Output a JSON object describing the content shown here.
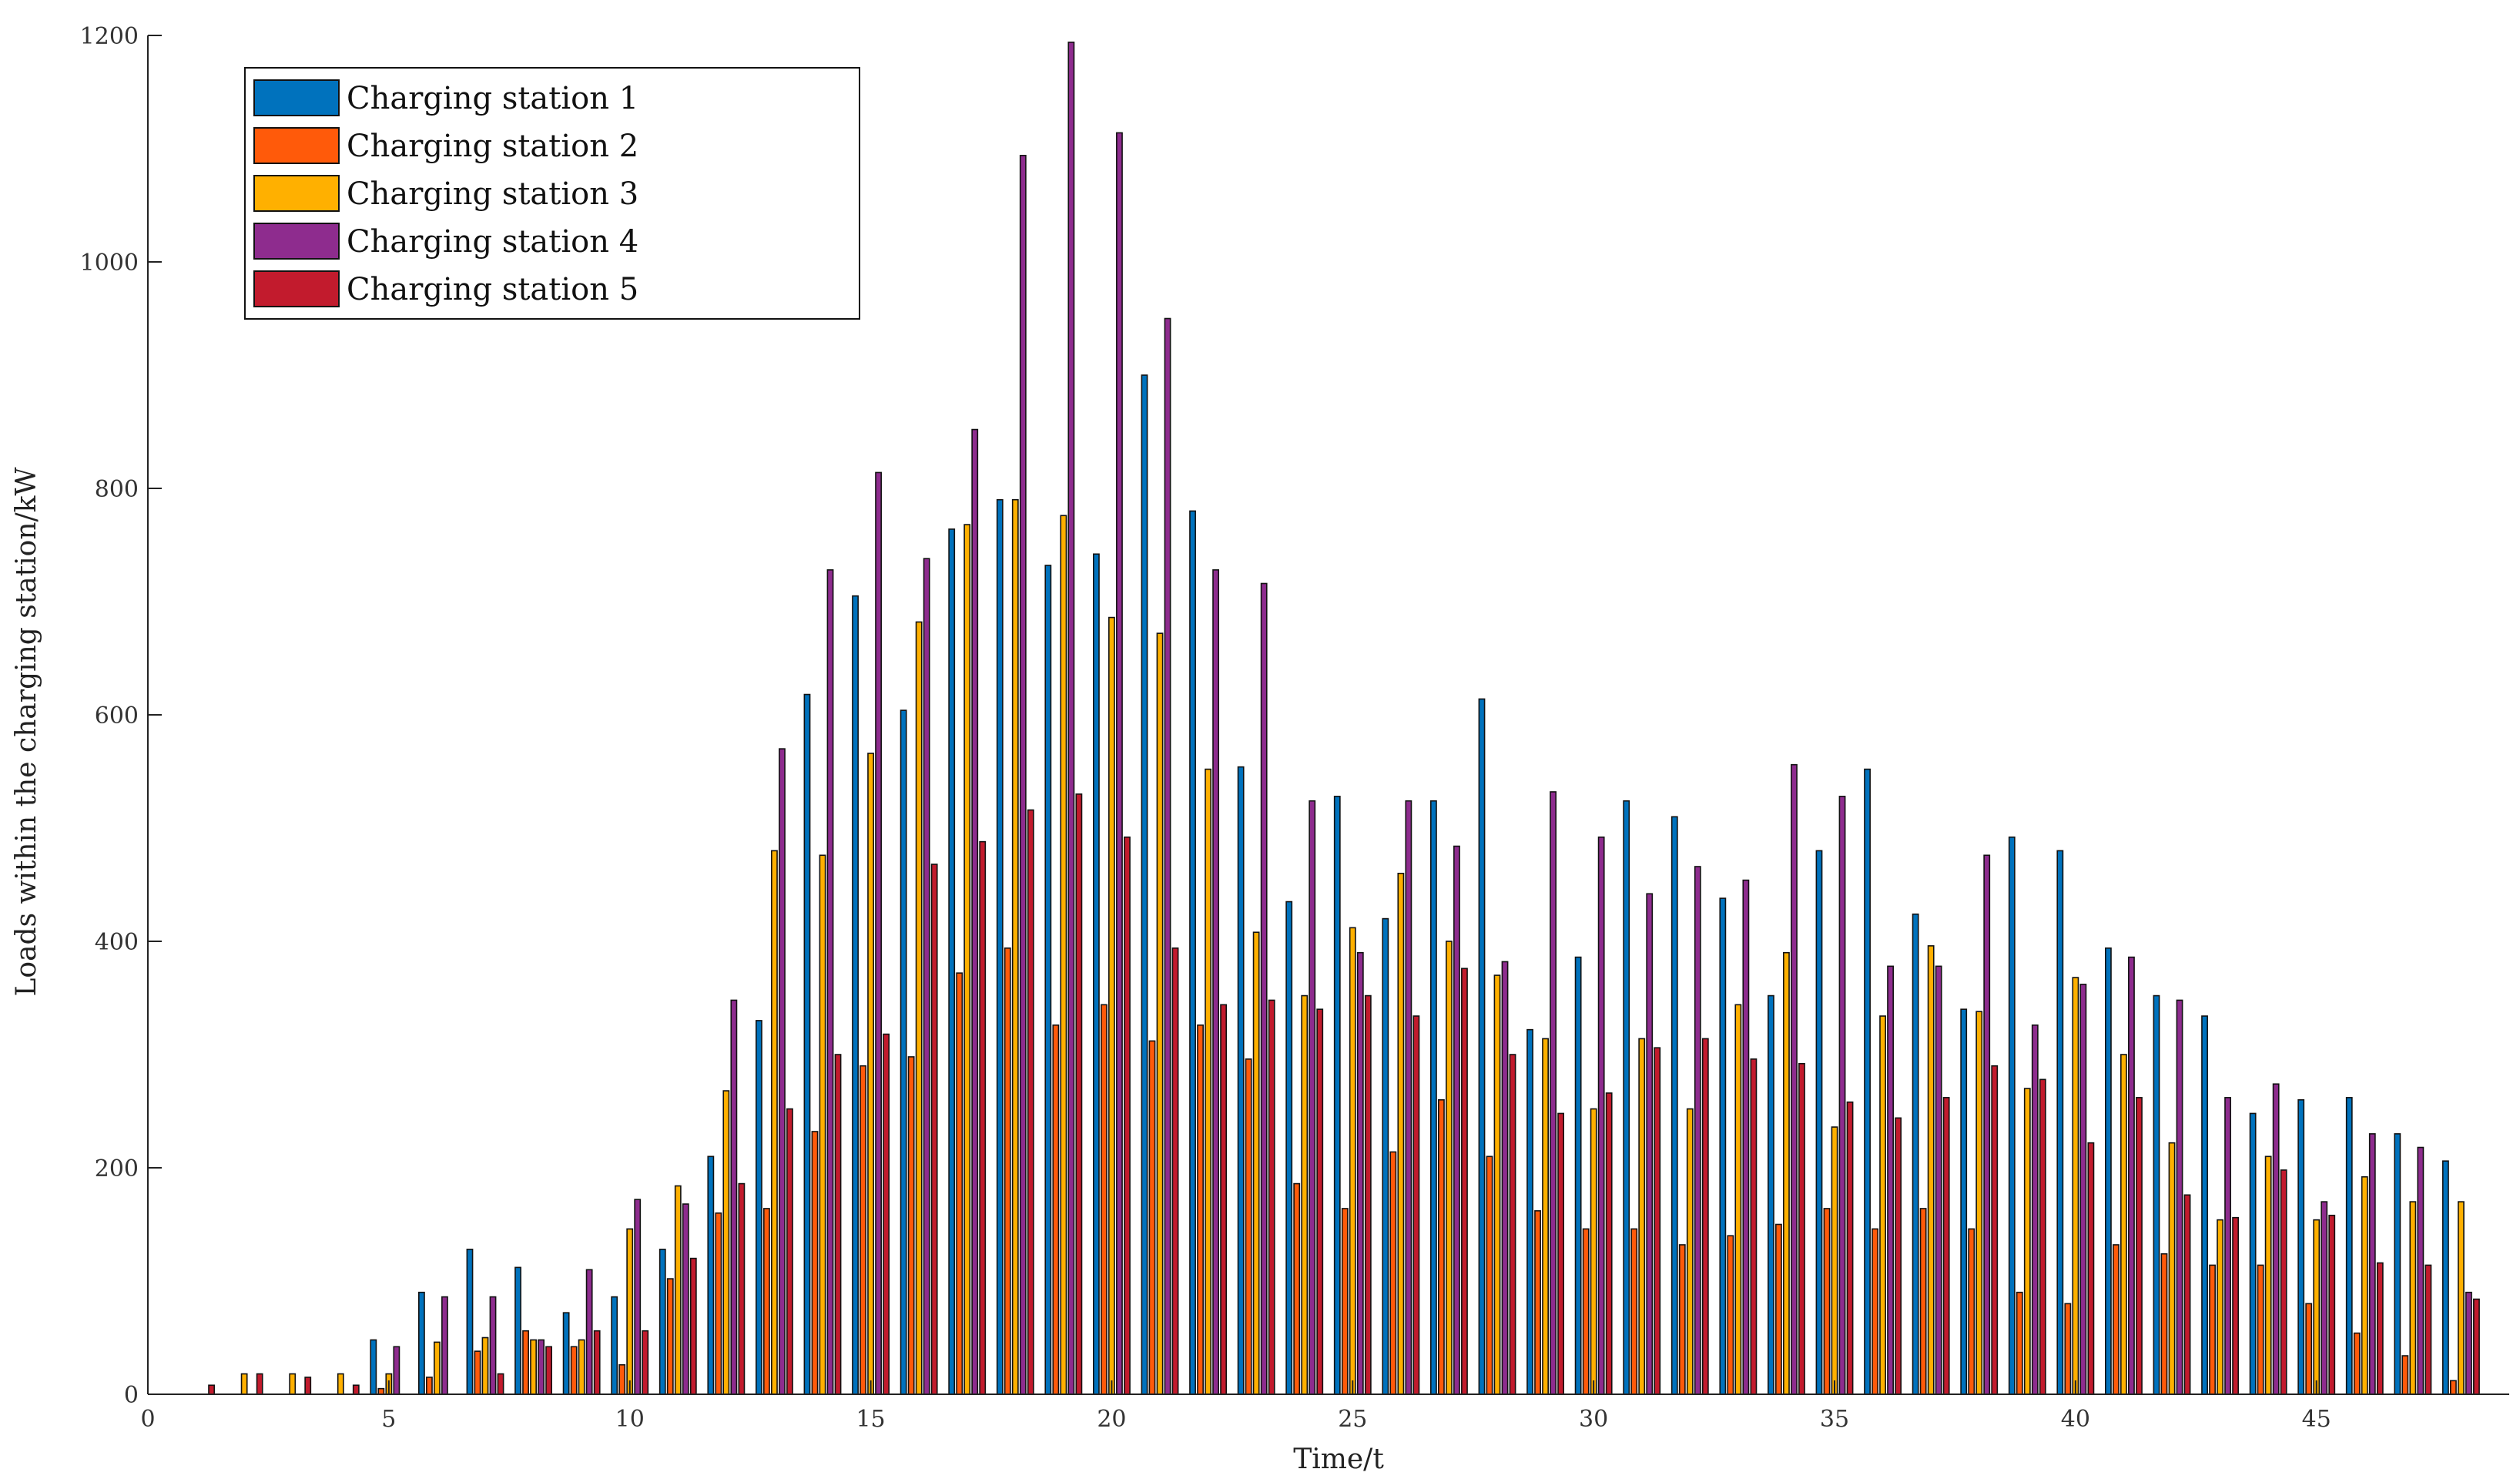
{
  "chart_data": {
    "type": "bar",
    "xlabel": "Time/t",
    "ylabel": "Loads within the charging station/kW",
    "xlim": [
      0,
      49
    ],
    "ylim": [
      0,
      1200
    ],
    "xticks": [
      0,
      5,
      10,
      15,
      20,
      25,
      30,
      35,
      40,
      45
    ],
    "yticks": [
      0,
      200,
      400,
      600,
      800,
      1000,
      1200
    ],
    "grid": false,
    "legend_position": "top-left",
    "categories": [
      1,
      2,
      3,
      4,
      5,
      6,
      7,
      8,
      9,
      10,
      11,
      12,
      13,
      14,
      15,
      16,
      17,
      18,
      19,
      20,
      21,
      22,
      23,
      24,
      25,
      26,
      27,
      28,
      29,
      30,
      31,
      32,
      33,
      34,
      35,
      36,
      37,
      38,
      39,
      40,
      41,
      42,
      43,
      44,
      45,
      46,
      47,
      48
    ],
    "series": [
      {
        "name": "Charging station 1",
        "color": "#0072BD",
        "values": [
          0,
          0,
          0,
          0,
          48,
          90,
          128,
          112,
          72,
          86,
          128,
          210,
          330,
          618,
          705,
          604,
          764,
          790,
          732,
          742,
          900,
          780,
          554,
          435,
          528,
          420,
          524,
          614,
          322,
          386,
          524,
          510,
          438,
          352,
          480,
          552,
          424,
          340,
          492,
          480,
          394,
          352,
          334,
          248,
          260,
          262,
          230,
          206
        ]
      },
      {
        "name": "Charging station 2",
        "color": "#FF5A0A",
        "values": [
          0,
          0,
          0,
          0,
          5,
          15,
          38,
          56,
          42,
          26,
          102,
          160,
          164,
          232,
          290,
          298,
          372,
          394,
          326,
          344,
          312,
          326,
          296,
          186,
          164,
          214,
          260,
          210,
          162,
          146,
          146,
          132,
          140,
          150,
          164,
          146,
          164,
          146,
          90,
          80,
          132,
          124,
          114,
          114,
          80,
          54,
          34,
          12
        ]
      },
      {
        "name": "Charging station 3",
        "color": "#FFB000",
        "values": [
          0,
          18,
          18,
          18,
          18,
          46,
          50,
          48,
          48,
          146,
          184,
          268,
          480,
          476,
          566,
          682,
          768,
          790,
          776,
          686,
          672,
          552,
          408,
          352,
          412,
          460,
          400,
          370,
          314,
          252,
          314,
          252,
          344,
          390,
          236,
          334,
          396,
          338,
          270,
          368,
          300,
          222,
          154,
          210,
          154,
          192,
          170,
          170
        ]
      },
      {
        "name": "Charging station 4",
        "color": "#8E2C8E",
        "values": [
          0,
          0,
          0,
          0,
          42,
          86,
          86,
          48,
          110,
          172,
          168,
          348,
          570,
          728,
          814,
          738,
          852,
          1094,
          1194,
          1114,
          950,
          728,
          716,
          524,
          390,
          524,
          484,
          382,
          532,
          492,
          442,
          466,
          454,
          556,
          528,
          378,
          378,
          476,
          326,
          362,
          386,
          348,
          262,
          274,
          170,
          230,
          218,
          90
        ]
      },
      {
        "name": "Charging station 5",
        "color": "#C21B2D",
        "values": [
          8,
          18,
          15,
          8,
          0,
          0,
          18,
          42,
          56,
          56,
          120,
          186,
          252,
          300,
          318,
          468,
          488,
          516,
          530,
          492,
          394,
          344,
          348,
          340,
          352,
          334,
          376,
          300,
          248,
          266,
          306,
          314,
          296,
          292,
          258,
          244,
          262,
          290,
          278,
          222,
          262,
          176,
          156,
          198,
          158,
          116,
          114,
          84
        ]
      }
    ]
  }
}
